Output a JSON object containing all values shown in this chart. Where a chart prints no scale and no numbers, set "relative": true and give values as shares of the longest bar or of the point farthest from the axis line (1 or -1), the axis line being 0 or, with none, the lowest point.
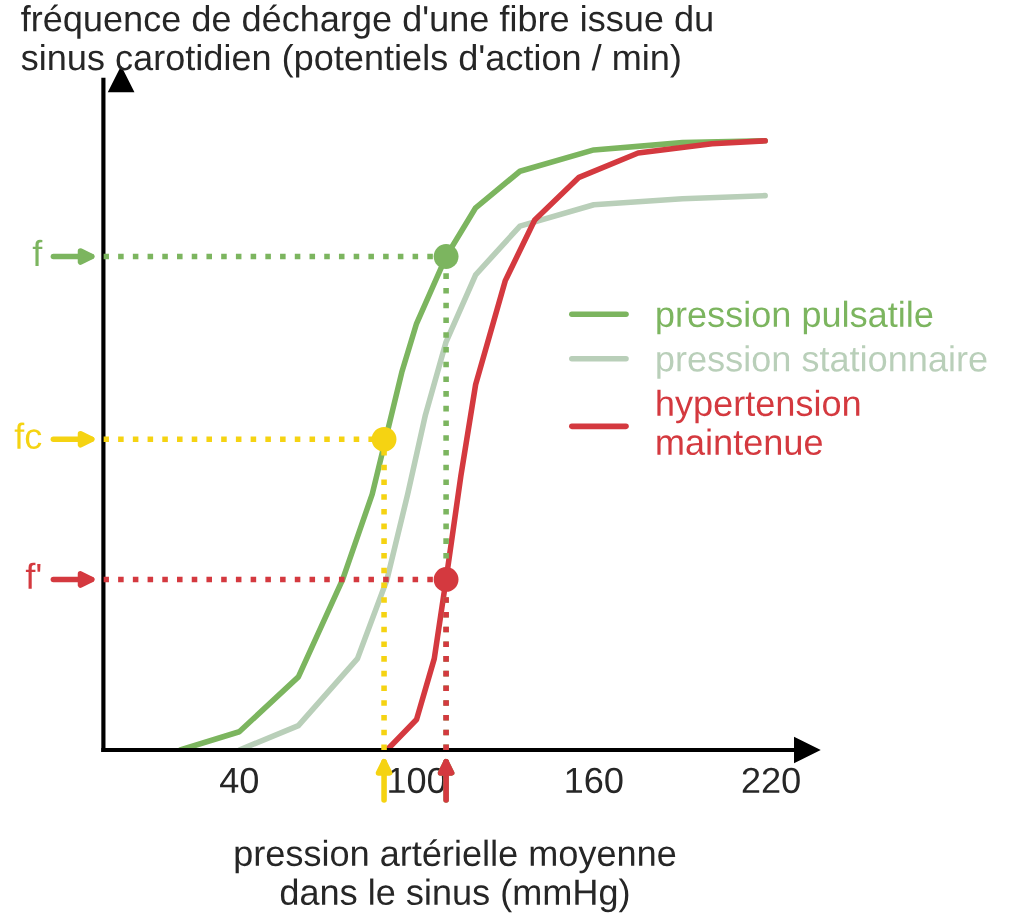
{
  "chart_data": {
    "type": "line",
    "title": "fréquence de décharge d'une fibre issue du\nsinus carotidien (potentiels d'action / min)",
    "xlabel": "pression artérielle moyenne\ndans le sinus (mmHg)",
    "relative": true,
    "xlim": [
      -6,
      232
    ],
    "xticks": [
      40,
      100,
      160,
      220
    ],
    "legend": "right",
    "grid": false,
    "series": [
      {
        "name": "pression pulsatile",
        "color": "#7cb55f",
        "x": [
          20,
          40,
          60,
          75,
          85,
          95,
          100,
          110,
          120,
          135,
          160,
          190,
          218
        ],
        "values": [
          0,
          0.03,
          0.12,
          0.28,
          0.42,
          0.62,
          0.7,
          0.81,
          0.89,
          0.95,
          0.985,
          0.997,
          1.0
        ]
      },
      {
        "name": "pression stationnaire",
        "color": "#b9cfb9",
        "x": [
          40,
          60,
          80,
          90,
          97,
          103,
          110,
          120,
          135,
          160,
          190,
          218
        ],
        "values": [
          0,
          0.04,
          0.15,
          0.28,
          0.42,
          0.55,
          0.67,
          0.78,
          0.86,
          0.895,
          0.905,
          0.91
        ]
      },
      {
        "name": "hypertension\nmaintenue",
        "color": "#d4393f",
        "x": [
          90,
          100,
          106,
          110,
          115,
          120,
          130,
          140,
          155,
          175,
          200,
          218
        ],
        "values": [
          0,
          0.05,
          0.15,
          0.28,
          0.45,
          0.6,
          0.77,
          0.87,
          0.94,
          0.98,
          0.995,
          1.0
        ]
      },
      {
        "type": "scatter",
        "x": [
          110,
          89,
          110
        ],
        "values": [
          0.81,
          0.51,
          0.28
        ],
        "colors": [
          "#7cb55f",
          "#f5d312",
          "#d4393f"
        ]
      }
    ],
    "ref_lines": [
      {
        "axis": "y",
        "value": 0.81,
        "label": "f",
        "color": "#7cb55f",
        "line_style": "dotted"
      },
      {
        "axis": "y",
        "value": 0.51,
        "label": "fc",
        "color": "#f5d312",
        "line_style": "dotted"
      },
      {
        "axis": "y",
        "value": 0.28,
        "label": "f'",
        "color": "#d4393f",
        "line_style": "dotted"
      },
      {
        "axis": "x",
        "value": 110,
        "color": "#7cb55f",
        "line_style": "dotted"
      },
      {
        "axis": "x",
        "value": 89,
        "color": "#f5d312",
        "line_style": "dotted"
      },
      {
        "axis": "x",
        "value": 110,
        "color": "#d4393f",
        "line_style": "dotted"
      }
    ]
  }
}
